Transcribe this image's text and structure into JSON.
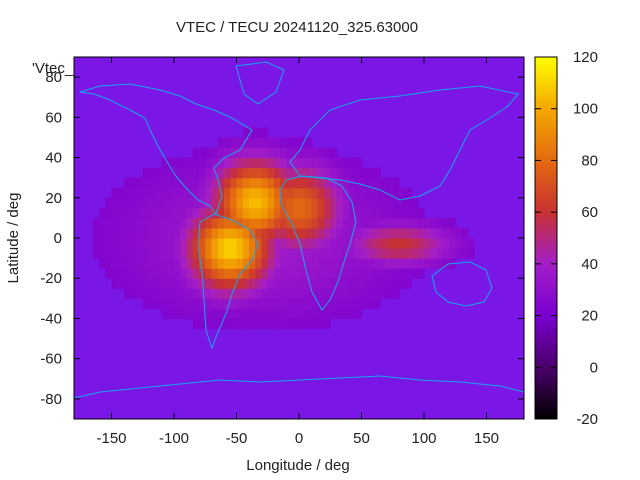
{
  "chart_data": {
    "type": "heatmap",
    "title": "VTEC / TECU 20241120_325.63000",
    "xlabel": "Longitude / deg",
    "ylabel": "Latitude / deg",
    "xlim": [
      -180,
      180
    ],
    "ylim": [
      -90,
      90
    ],
    "x_ticks": [
      -150,
      -100,
      -50,
      0,
      50,
      100,
      150
    ],
    "y_ticks": [
      -80,
      -60,
      -40,
      -20,
      0,
      20,
      40,
      60,
      80
    ],
    "series_label": "'Vtec_",
    "colorbar": {
      "range": [
        -20,
        120
      ],
      "ticks": [
        -20,
        0,
        20,
        40,
        60,
        80,
        100,
        120
      ],
      "palette": "gnuplot-hot",
      "colors": [
        "#000000",
        "#4b006b",
        "#7a00d0",
        "#a31ec8",
        "#c93232",
        "#e36a10",
        "#f5a800",
        "#ffff00"
      ]
    },
    "background_value": 20,
    "features": [
      {
        "name": "main-crest-americas",
        "lon": -55,
        "lat": -5,
        "peak": 110
      },
      {
        "name": "northern-crest-atlantic",
        "lon": -35,
        "lat": 18,
        "peak": 105
      },
      {
        "name": "africa-crest",
        "lon": 0,
        "lat": 15,
        "peak": 80
      },
      {
        "name": "indian-ocean-tongue",
        "lon": 80,
        "lat": -3,
        "peak": 60
      }
    ]
  }
}
